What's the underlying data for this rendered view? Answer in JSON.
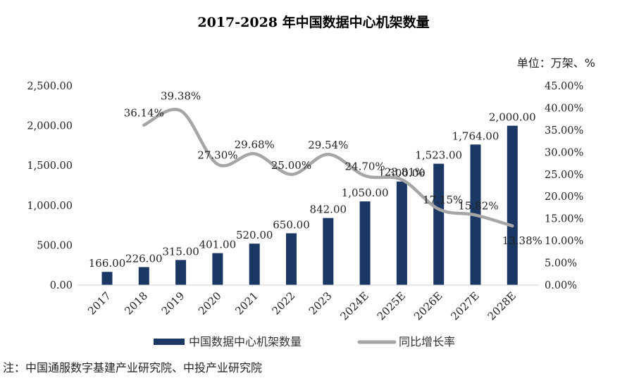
{
  "chart_data": {
    "type": "bar",
    "title": "2017-2028 年中国数据中心机架数量",
    "unit_label": "单位：万架、%",
    "categories": [
      "2017",
      "2018",
      "2019",
      "2020",
      "2021",
      "2022",
      "2023",
      "2024E",
      "2025E",
      "2026E",
      "2027E",
      "2028E"
    ],
    "series": [
      {
        "name": "中国数据中心机架数量",
        "kind": "bar",
        "axis": "left",
        "color": "#1b3764",
        "values": [
          166,
          226,
          315,
          401,
          520,
          650,
          842,
          1050,
          1300,
          1523,
          1764,
          2000
        ],
        "labels": [
          "166.00",
          "226.00",
          "315.00",
          "401.00",
          "520.00",
          "650.00",
          "842.00",
          "1,050.00",
          "1,300.00",
          "1,523.00",
          "1,764.00",
          "2,000.00"
        ]
      },
      {
        "name": "同比增长率",
        "kind": "line",
        "axis": "right",
        "color": "#a6a6a6",
        "values": [
          null,
          36.14,
          39.38,
          27.3,
          29.68,
          25.0,
          29.54,
          24.7,
          23.81,
          17.15,
          15.82,
          13.38
        ],
        "labels": [
          null,
          "36.14%",
          "39.38%",
          "27.30%",
          "29.68%",
          "25.00%",
          "29.54%",
          "24.70%",
          "23.81%",
          "17.15%",
          "15.82%",
          "13.38%"
        ]
      }
    ],
    "y_left": {
      "ylim": [
        0,
        2500
      ],
      "ticks": [
        0,
        500,
        1000,
        1500,
        2000,
        2500
      ],
      "tick_labels": [
        "0.00",
        "500.00",
        "1,000.00",
        "1,500.00",
        "2,000.00",
        "2,500.00"
      ]
    },
    "y_right": {
      "ylim": [
        0,
        45
      ],
      "ticks": [
        0,
        5,
        10,
        15,
        20,
        25,
        30,
        35,
        40,
        45
      ],
      "tick_labels": [
        "0.00%",
        "5.00%",
        "10.00%",
        "15.00%",
        "20.00%",
        "25.00%",
        "30.00%",
        "35.00%",
        "40.00%",
        "45.00%"
      ]
    },
    "grid": false,
    "legend_position": "bottom"
  },
  "source_note": "注：中国通服数字基建产业研究院、中投产业研究院"
}
